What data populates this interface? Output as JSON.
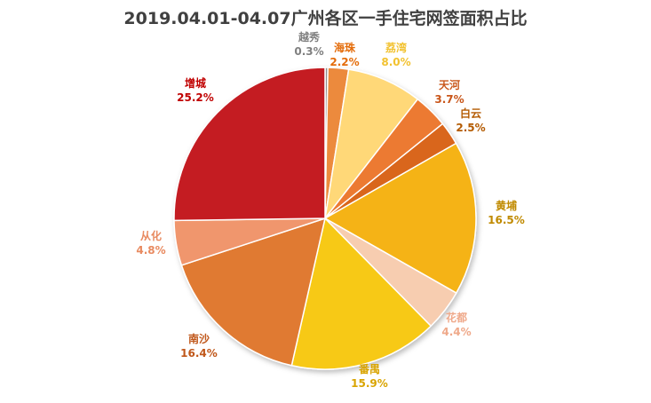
{
  "chart_data": {
    "type": "pie",
    "title": "2019.04.01-04.07广州各区一手住宅网签面积占比",
    "slices": [
      {
        "name": "越秀",
        "value": 0.3,
        "label": "0.3%",
        "color": "#8C8C8C",
        "label_color": "#7F7F7F"
      },
      {
        "name": "海珠",
        "value": 2.2,
        "label": "2.2%",
        "color": "#EC8A3C",
        "label_color": "#E46C0A"
      },
      {
        "name": "荔湾",
        "value": 8.0,
        "label": "8.0%",
        "color": "#FFD878",
        "label_color": "#F2C230"
      },
      {
        "name": "天河",
        "value": 3.7,
        "label": "3.7%",
        "color": "#EC7A32",
        "label_color": "#C9561A"
      },
      {
        "name": "白云",
        "value": 2.5,
        "label": "2.5%",
        "color": "#D9661A",
        "label_color": "#B35A00"
      },
      {
        "name": "黄埔",
        "value": 16.5,
        "label": "16.5%",
        "color": "#F5B313",
        "label_color": "#C08A00"
      },
      {
        "name": "花都",
        "value": 4.4,
        "label": "4.4%",
        "color": "#F7CDB0",
        "label_color": "#EFA98A"
      },
      {
        "name": "番禺",
        "value": 15.9,
        "label": "15.9%",
        "color": "#F7C914",
        "label_color": "#D9A400"
      },
      {
        "name": "南沙",
        "value": 16.4,
        "label": "16.4%",
        "color": "#E07A33",
        "label_color": "#C0571A"
      },
      {
        "name": "从化",
        "value": 4.8,
        "label": "4.8%",
        "color": "#F0966D",
        "label_color": "#E88A60"
      },
      {
        "name": "增城",
        "value": 25.2,
        "label": "25.2%",
        "color": "#C41B22",
        "label_color": "#C00000"
      }
    ],
    "start_angle": "top",
    "direction": "clockwise",
    "legend": "none"
  }
}
